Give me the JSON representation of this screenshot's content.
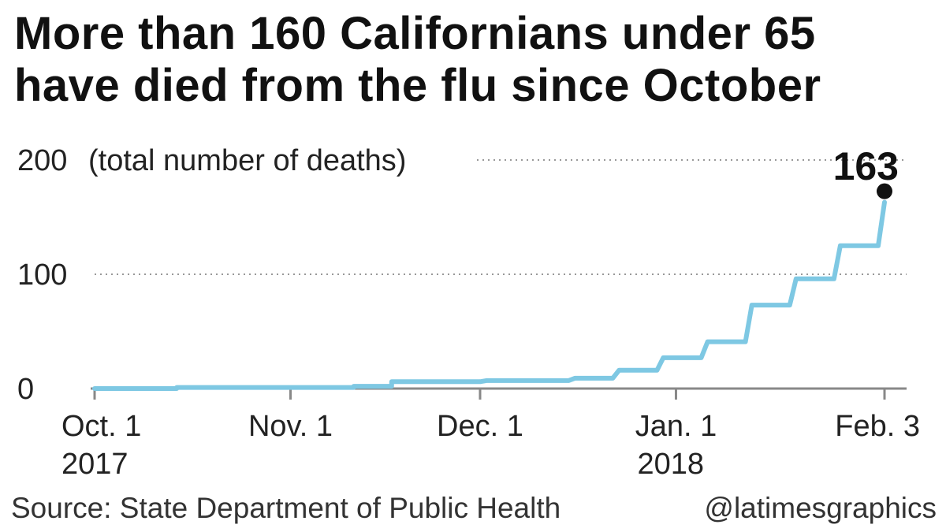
{
  "title": {
    "line1": "More than 160 Californians under 65",
    "line2": "have died from the flu since October"
  },
  "footer": {
    "source": "Source: State Department of Public Health",
    "credit": "@latimesgraphics"
  },
  "colors": {
    "line": "#7ec8e3",
    "axis": "#888888",
    "grid": "#999999",
    "dot": "#111111"
  },
  "chart_data": {
    "type": "line",
    "step": true,
    "x_start_date": "2017-10-01",
    "xlim": [
      0,
      125
    ],
    "ylim": [
      0,
      200
    ],
    "grid": true,
    "ylabel": "(total number of deaths)",
    "y_ticks": [
      {
        "value": 0,
        "label": "0"
      },
      {
        "value": 100,
        "label": "100"
      },
      {
        "value": 200,
        "label": "200"
      }
    ],
    "x_ticks": [
      {
        "day": 0,
        "label": "Oct. 1",
        "sublabel": "2017"
      },
      {
        "day": 31,
        "label": "Nov. 1",
        "sublabel": ""
      },
      {
        "day": 61,
        "label": "Dec. 1",
        "sublabel": ""
      },
      {
        "day": 92,
        "label": "Jan. 1",
        "sublabel": "2018"
      },
      {
        "day": 125,
        "label": "Feb. 3",
        "sublabel": ""
      }
    ],
    "series": [
      {
        "points": [
          [
            0,
            0
          ],
          [
            13,
            0
          ],
          [
            13,
            1
          ],
          [
            41,
            1
          ],
          [
            41,
            2
          ],
          [
            47,
            2
          ],
          [
            47,
            6
          ],
          [
            61,
            6
          ],
          [
            62,
            7
          ],
          [
            75,
            7
          ],
          [
            76,
            9
          ],
          [
            82,
            9
          ],
          [
            83,
            16
          ],
          [
            89,
            16
          ],
          [
            90,
            27
          ],
          [
            96,
            27
          ],
          [
            97,
            41
          ],
          [
            103,
            41
          ],
          [
            104,
            73
          ],
          [
            110,
            73
          ],
          [
            111,
            96
          ],
          [
            117,
            96
          ],
          [
            118,
            125
          ],
          [
            124,
            125
          ],
          [
            125,
            163
          ]
        ]
      }
    ],
    "annotation": {
      "day": 125,
      "value": 163,
      "label": "163"
    }
  }
}
